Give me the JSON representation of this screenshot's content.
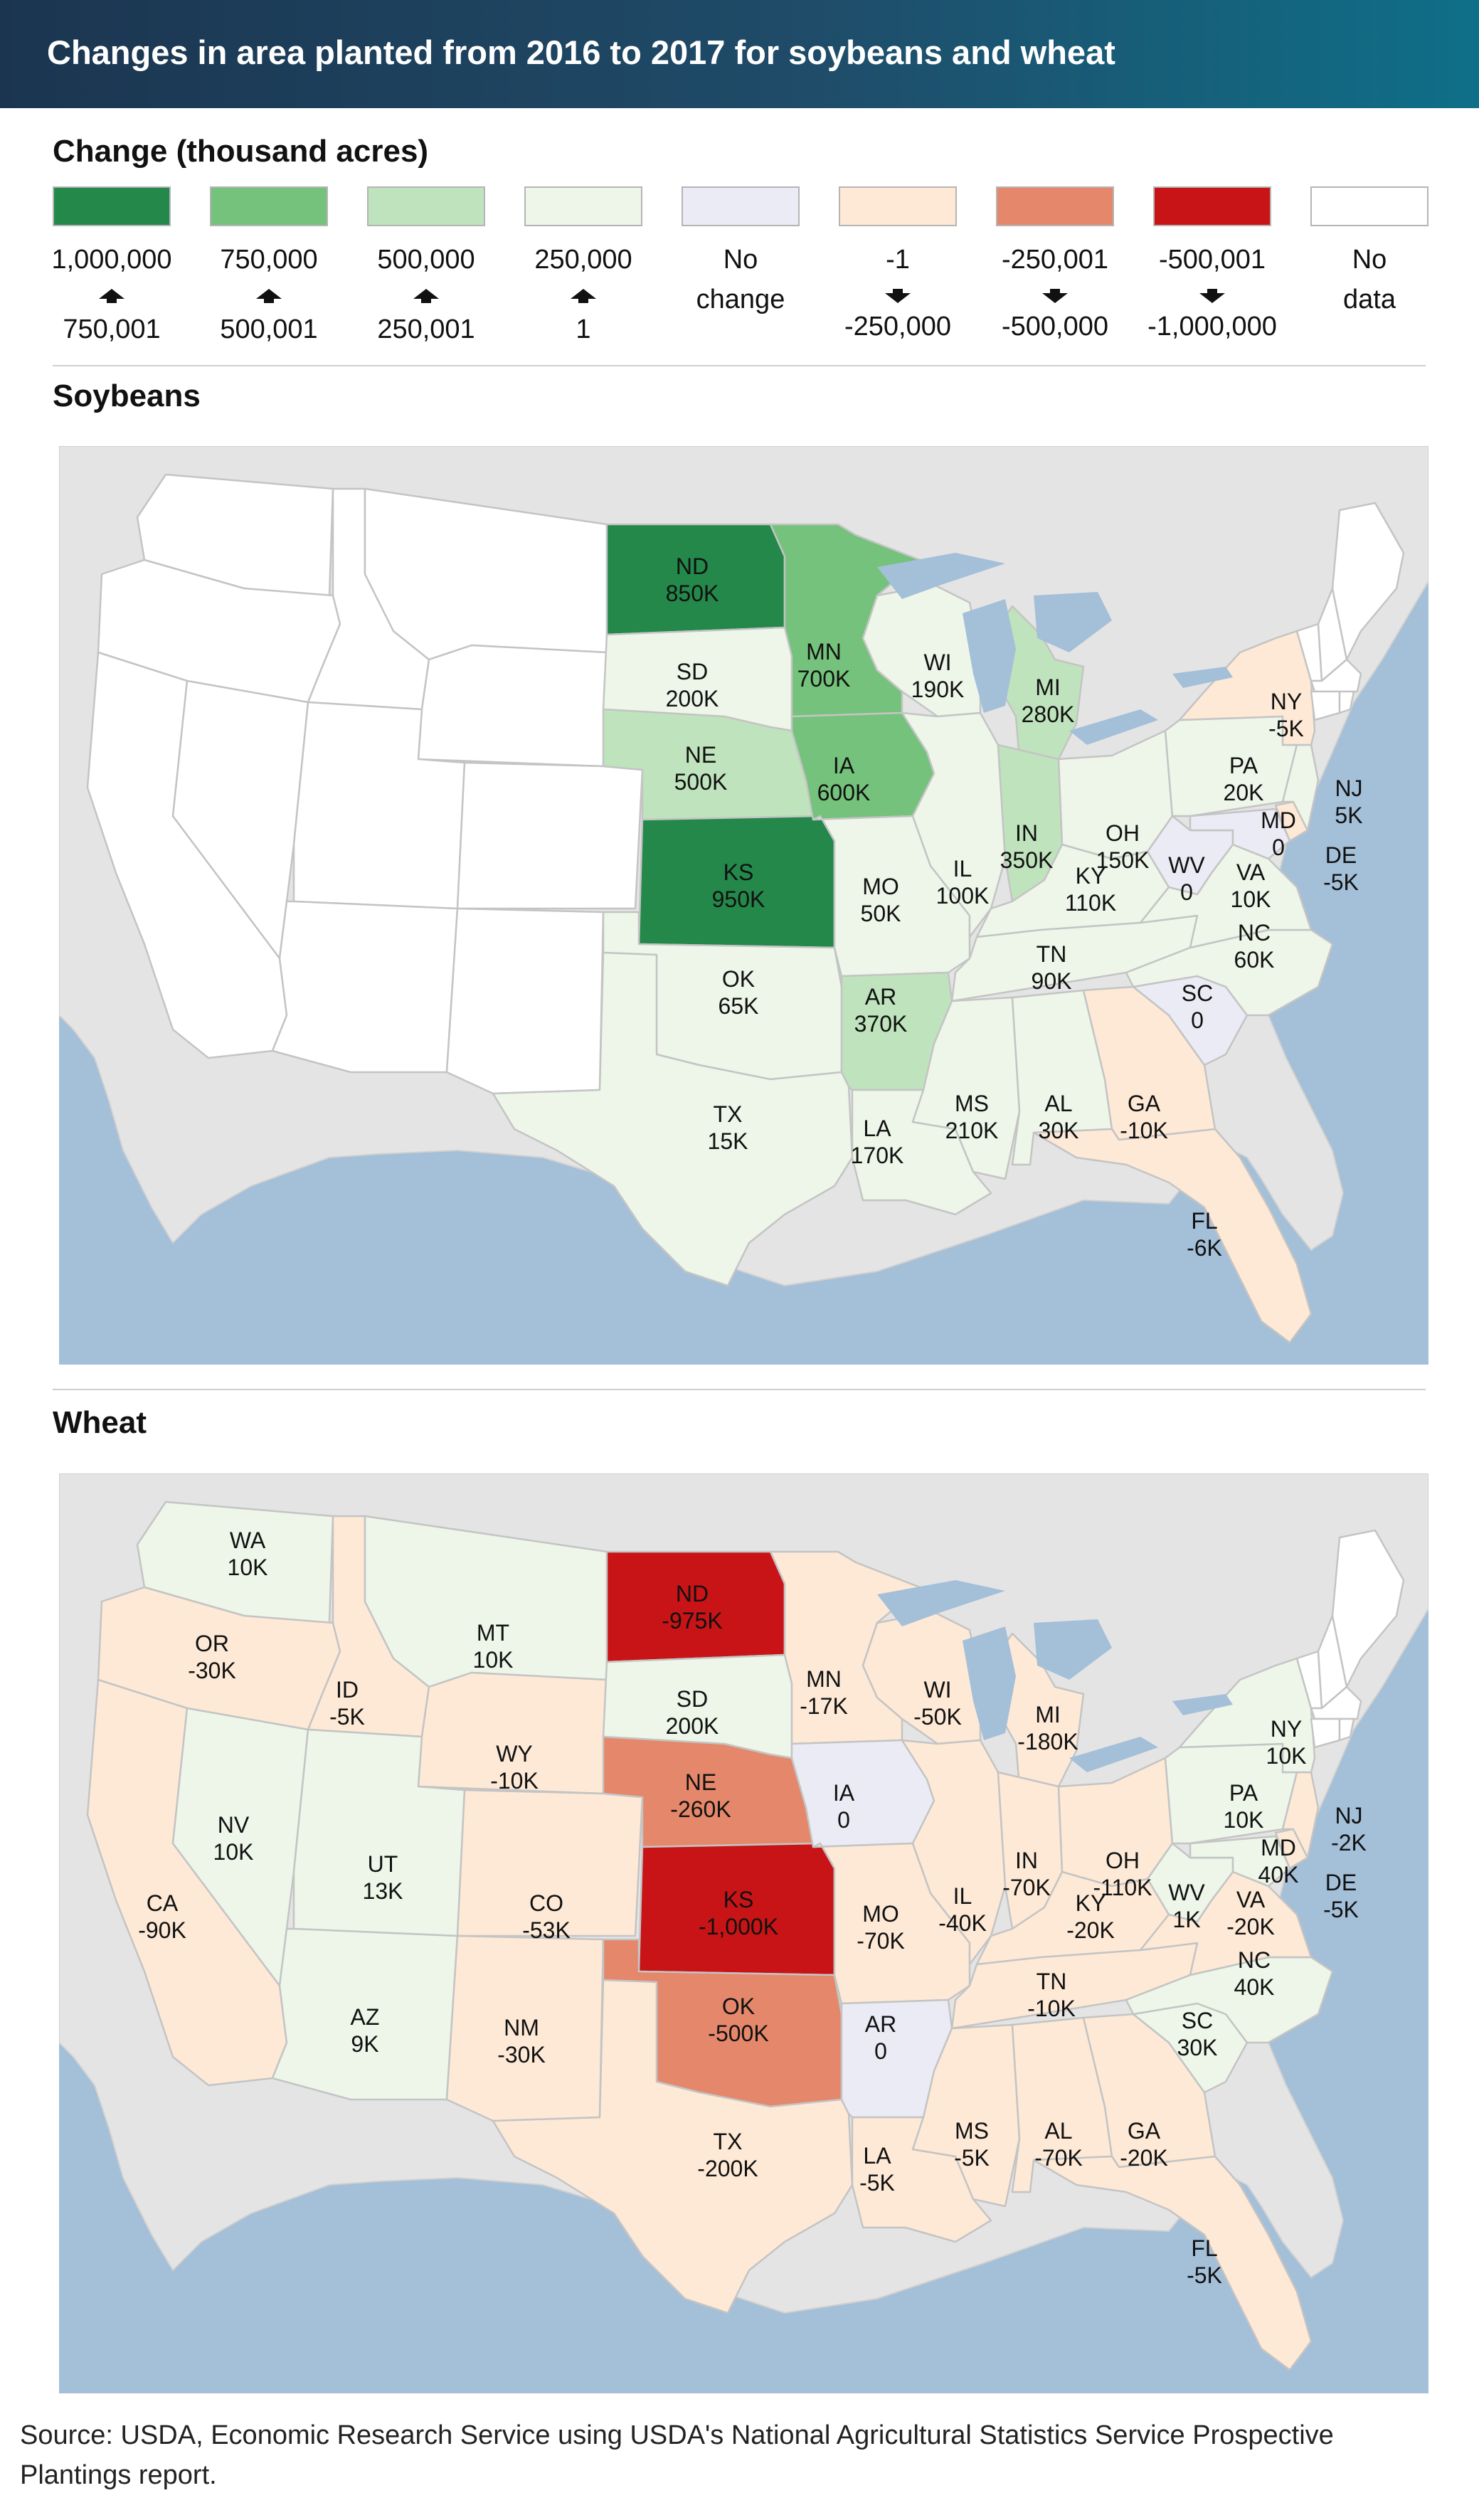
{
  "title": "Changes in area planted from 2016 to 2017 for soybeans and wheat",
  "legend": {
    "title": "Change (thousand acres)",
    "items": [
      {
        "top": "1,000,000",
        "bottom": "750,001",
        "color": "#23884a",
        "arrow": "up"
      },
      {
        "top": "750,000",
        "bottom": "500,001",
        "color": "#74c27b",
        "arrow": "up"
      },
      {
        "top": "500,000",
        "bottom": "250,001",
        "color": "#bfe3bc",
        "arrow": "up"
      },
      {
        "top": "250,000",
        "bottom": "1",
        "color": "#edf6e8",
        "arrow": "up"
      },
      {
        "top": "No",
        "bottom": "change",
        "color": "#ebebf5",
        "arrow": "none"
      },
      {
        "top": "-1",
        "bottom": "-250,000",
        "color": "#fde9d6",
        "arrow": "down"
      },
      {
        "top": "-250,001",
        "bottom": "-500,000",
        "color": "#e5876a",
        "arrow": "down"
      },
      {
        "top": "-500,001",
        "bottom": "-1,000,000",
        "color": "#c81416",
        "arrow": "down"
      },
      {
        "top": "No",
        "bottom": "data",
        "color": "#ffffff",
        "arrow": "none"
      }
    ]
  },
  "maps": [
    {
      "title": "Soybeans",
      "states": [
        {
          "abbr": "ND",
          "value": "850K"
        },
        {
          "abbr": "SD",
          "value": "200K"
        },
        {
          "abbr": "NE",
          "value": "500K"
        },
        {
          "abbr": "KS",
          "value": "950K"
        },
        {
          "abbr": "OK",
          "value": "65K"
        },
        {
          "abbr": "TX",
          "value": "15K"
        },
        {
          "abbr": "MN",
          "value": "700K"
        },
        {
          "abbr": "IA",
          "value": "600K"
        },
        {
          "abbr": "MO",
          "value": "50K"
        },
        {
          "abbr": "AR",
          "value": "370K"
        },
        {
          "abbr": "LA",
          "value": "170K"
        },
        {
          "abbr": "WI",
          "value": "190K"
        },
        {
          "abbr": "IL",
          "value": "100K"
        },
        {
          "abbr": "MI",
          "value": "280K"
        },
        {
          "abbr": "IN",
          "value": "350K"
        },
        {
          "abbr": "OH",
          "value": "150K"
        },
        {
          "abbr": "KY",
          "value": "110K"
        },
        {
          "abbr": "TN",
          "value": "90K"
        },
        {
          "abbr": "MS",
          "value": "210K"
        },
        {
          "abbr": "AL",
          "value": "30K"
        },
        {
          "abbr": "GA",
          "value": "-10K"
        },
        {
          "abbr": "FL",
          "value": "-6K"
        },
        {
          "abbr": "SC",
          "value": "0"
        },
        {
          "abbr": "NC",
          "value": "60K"
        },
        {
          "abbr": "VA",
          "value": "10K"
        },
        {
          "abbr": "WV",
          "value": "0"
        },
        {
          "abbr": "MD",
          "value": "0"
        },
        {
          "abbr": "DE",
          "value": "-5K"
        },
        {
          "abbr": "PA",
          "value": "20K"
        },
        {
          "abbr": "NY",
          "value": "-5K"
        },
        {
          "abbr": "NJ",
          "value": "5K"
        }
      ]
    },
    {
      "title": "Wheat",
      "states": [
        {
          "abbr": "WA",
          "value": "10K"
        },
        {
          "abbr": "OR",
          "value": "-30K"
        },
        {
          "abbr": "ID",
          "value": "-5K"
        },
        {
          "abbr": "MT",
          "value": "10K"
        },
        {
          "abbr": "WY",
          "value": "-10K"
        },
        {
          "abbr": "NV",
          "value": "10K"
        },
        {
          "abbr": "UT",
          "value": "13K"
        },
        {
          "abbr": "CA",
          "value": "-90K"
        },
        {
          "abbr": "CO",
          "value": "-53K"
        },
        {
          "abbr": "AZ",
          "value": "9K"
        },
        {
          "abbr": "NM",
          "value": "-30K"
        },
        {
          "abbr": "ND",
          "value": "-975K"
        },
        {
          "abbr": "SD",
          "value": "200K"
        },
        {
          "abbr": "NE",
          "value": "-260K"
        },
        {
          "abbr": "KS",
          "value": "-1,000K"
        },
        {
          "abbr": "OK",
          "value": "-500K"
        },
        {
          "abbr": "TX",
          "value": "-200K"
        },
        {
          "abbr": "MN",
          "value": "-17K"
        },
        {
          "abbr": "IA",
          "value": "0"
        },
        {
          "abbr": "MO",
          "value": "-70K"
        },
        {
          "abbr": "AR",
          "value": "0"
        },
        {
          "abbr": "LA",
          "value": "-5K"
        },
        {
          "abbr": "WI",
          "value": "-50K"
        },
        {
          "abbr": "IL",
          "value": "-40K"
        },
        {
          "abbr": "MI",
          "value": "-180K"
        },
        {
          "abbr": "IN",
          "value": "-70K"
        },
        {
          "abbr": "OH",
          "value": "-110K"
        },
        {
          "abbr": "KY",
          "value": "-20K"
        },
        {
          "abbr": "TN",
          "value": "-10K"
        },
        {
          "abbr": "MS",
          "value": "-5K"
        },
        {
          "abbr": "AL",
          "value": "-70K"
        },
        {
          "abbr": "GA",
          "value": "-20K"
        },
        {
          "abbr": "FL",
          "value": "-5K"
        },
        {
          "abbr": "SC",
          "value": "30K"
        },
        {
          "abbr": "NC",
          "value": "40K"
        },
        {
          "abbr": "VA",
          "value": "-20K"
        },
        {
          "abbr": "WV",
          "value": "1K"
        },
        {
          "abbr": "MD",
          "value": "40K"
        },
        {
          "abbr": "DE",
          "value": "-5K"
        },
        {
          "abbr": "PA",
          "value": "10K"
        },
        {
          "abbr": "NY",
          "value": "10K"
        },
        {
          "abbr": "NJ",
          "value": "-2K"
        }
      ]
    }
  ],
  "source": "Source: USDA, Economic Research Service using USDA's National Agricultural Statistics Service Prospective Plantings report."
}
